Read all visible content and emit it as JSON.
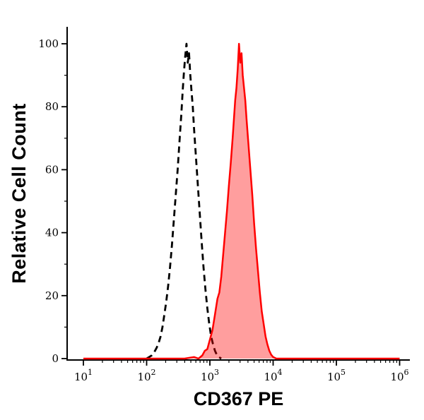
{
  "figure": {
    "background": "#ffffff"
  },
  "axes": {
    "x_label": "CD367 PE",
    "y_label": "Relative Cell Count",
    "x_tick_base": "10",
    "x_tick_exponents": [
      1,
      2,
      3,
      4,
      5,
      6
    ],
    "y_tick_values": [
      0,
      20,
      40,
      60,
      80,
      100
    ],
    "y_minor_tick_values": [
      10,
      30,
      50,
      70,
      90
    ],
    "axis_color": "#000000"
  },
  "colors": {
    "red_stroke": "#ff0000",
    "red_fill": "rgba(255,0,0,0.38)",
    "black_stroke": "#000000",
    "background": "#ffffff"
  },
  "chart_data": {
    "type": "area",
    "title": "",
    "xlabel": "CD367 PE",
    "ylabel": "Relative Cell Count",
    "x_scale": "log10",
    "x_range_log10": [
      1,
      6
    ],
    "ylim": [
      0,
      100
    ],
    "grid": false,
    "legend": "none",
    "series": [
      {
        "name": "isotype-control-dashed",
        "color": "#000000",
        "fill": null,
        "dash": "9,6",
        "width": 2.8,
        "peak_x_approx": 400,
        "peak_y": 100,
        "points_log10x_y": [
          [
            2.0,
            0
          ],
          [
            2.04,
            0.5
          ],
          [
            2.08,
            1
          ],
          [
            2.12,
            2
          ],
          [
            2.16,
            3.5
          ],
          [
            2.19,
            5
          ],
          [
            2.22,
            7
          ],
          [
            2.25,
            10
          ],
          [
            2.28,
            14
          ],
          [
            2.31,
            18
          ],
          [
            2.34,
            23
          ],
          [
            2.37,
            29
          ],
          [
            2.4,
            36
          ],
          [
            2.43,
            44
          ],
          [
            2.46,
            52
          ],
          [
            2.49,
            60
          ],
          [
            2.52,
            69
          ],
          [
            2.55,
            78
          ],
          [
            2.57,
            85
          ],
          [
            2.59,
            91
          ],
          [
            2.61,
            96
          ],
          [
            2.63,
            100
          ],
          [
            2.65,
            94
          ],
          [
            2.67,
            97
          ],
          [
            2.69,
            90
          ],
          [
            2.71,
            85
          ],
          [
            2.73,
            80
          ],
          [
            2.75,
            73
          ],
          [
            2.78,
            64
          ],
          [
            2.81,
            55
          ],
          [
            2.84,
            46
          ],
          [
            2.87,
            37
          ],
          [
            2.9,
            29
          ],
          [
            2.93,
            22
          ],
          [
            2.96,
            16
          ],
          [
            2.99,
            11
          ],
          [
            3.02,
            7
          ],
          [
            3.05,
            4.5
          ],
          [
            3.08,
            2.5
          ],
          [
            3.11,
            1.2
          ],
          [
            3.14,
            0.5
          ],
          [
            3.18,
            0
          ]
        ]
      },
      {
        "name": "cd367-pe-stained-red-filled",
        "color": "#ff0000",
        "fill": "rgba(255,0,0,0.38)",
        "dash": null,
        "width": 2.5,
        "peak_x_approx": 2900,
        "peak_y": 100,
        "points_log10x_y": [
          [
            1.0,
            0
          ],
          [
            1.5,
            0
          ],
          [
            2.0,
            0
          ],
          [
            2.4,
            0
          ],
          [
            2.6,
            0
          ],
          [
            2.75,
            0.5
          ],
          [
            2.82,
            0
          ],
          [
            2.88,
            1
          ],
          [
            2.92,
            2.5
          ],
          [
            2.96,
            3
          ],
          [
            3.0,
            6
          ],
          [
            3.04,
            9
          ],
          [
            3.08,
            14
          ],
          [
            3.12,
            19
          ],
          [
            3.15,
            21
          ],
          [
            3.18,
            26
          ],
          [
            3.21,
            33
          ],
          [
            3.24,
            40
          ],
          [
            3.27,
            47
          ],
          [
            3.3,
            55
          ],
          [
            3.33,
            62
          ],
          [
            3.36,
            70
          ],
          [
            3.38,
            76
          ],
          [
            3.4,
            82
          ],
          [
            3.42,
            86
          ],
          [
            3.44,
            92
          ],
          [
            3.46,
            100
          ],
          [
            3.48,
            94
          ],
          [
            3.5,
            97
          ],
          [
            3.52,
            90
          ],
          [
            3.54,
            86
          ],
          [
            3.56,
            82
          ],
          [
            3.58,
            76
          ],
          [
            3.61,
            68
          ],
          [
            3.64,
            60
          ],
          [
            3.67,
            52
          ],
          [
            3.7,
            43
          ],
          [
            3.73,
            35
          ],
          [
            3.76,
            28
          ],
          [
            3.79,
            21
          ],
          [
            3.82,
            15
          ],
          [
            3.85,
            11
          ],
          [
            3.88,
            7
          ],
          [
            3.91,
            4.5
          ],
          [
            3.94,
            2.5
          ],
          [
            3.97,
            1.2
          ],
          [
            4.0,
            0.5
          ],
          [
            4.05,
            0
          ],
          [
            4.5,
            0
          ],
          [
            5.0,
            0
          ],
          [
            5.5,
            0
          ],
          [
            6.0,
            0
          ]
        ]
      }
    ]
  }
}
